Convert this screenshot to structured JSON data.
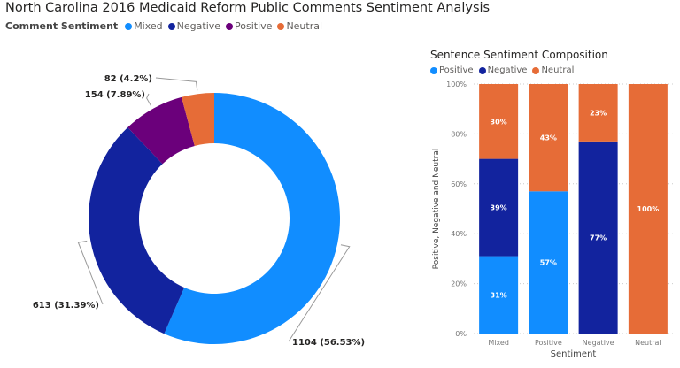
{
  "chart_data": [
    {
      "type": "pie",
      "donut": true,
      "title": "North Carolina 2016 Medicaid Reform Public Comments Sentiment Analysis",
      "legend_title": "Comment Sentiment",
      "legend_position": "top-left",
      "slices": [
        {
          "name": "Mixed",
          "value": 1104,
          "percent": 56.53,
          "label": "1104 (56.53%)",
          "color": "#118DFF"
        },
        {
          "name": "Negative",
          "value": 613,
          "percent": 31.39,
          "label": "613 (31.39%)",
          "color": "#12239E"
        },
        {
          "name": "Positive",
          "value": 154,
          "percent": 7.89,
          "label": "154 (7.89%)",
          "color": "#6B007B"
        },
        {
          "name": "Neutral",
          "value": 82,
          "percent": 4.2,
          "label": "82 (4.2%)",
          "color": "#E66C37"
        }
      ]
    },
    {
      "type": "bar",
      "stacked": true,
      "percent": true,
      "title": "Sentence Sentiment Composition",
      "xlabel": "Sentiment",
      "ylabel": "Positive, Negative and Neutral",
      "ylim": [
        0,
        100
      ],
      "yticks": [
        "0%",
        "20%",
        "40%",
        "60%",
        "80%",
        "100%"
      ],
      "grid": true,
      "legend_position": "top-left",
      "categories": [
        "Mixed",
        "Positive",
        "Negative",
        "Neutral"
      ],
      "series": [
        {
          "name": "Positive",
          "color": "#118DFF",
          "values": [
            31,
            57,
            0,
            0
          ]
        },
        {
          "name": "Negative",
          "color": "#12239E",
          "values": [
            39,
            0,
            77,
            0
          ]
        },
        {
          "name": "Neutral",
          "color": "#E66C37",
          "values": [
            30,
            43,
            23,
            100
          ]
        }
      ]
    }
  ]
}
